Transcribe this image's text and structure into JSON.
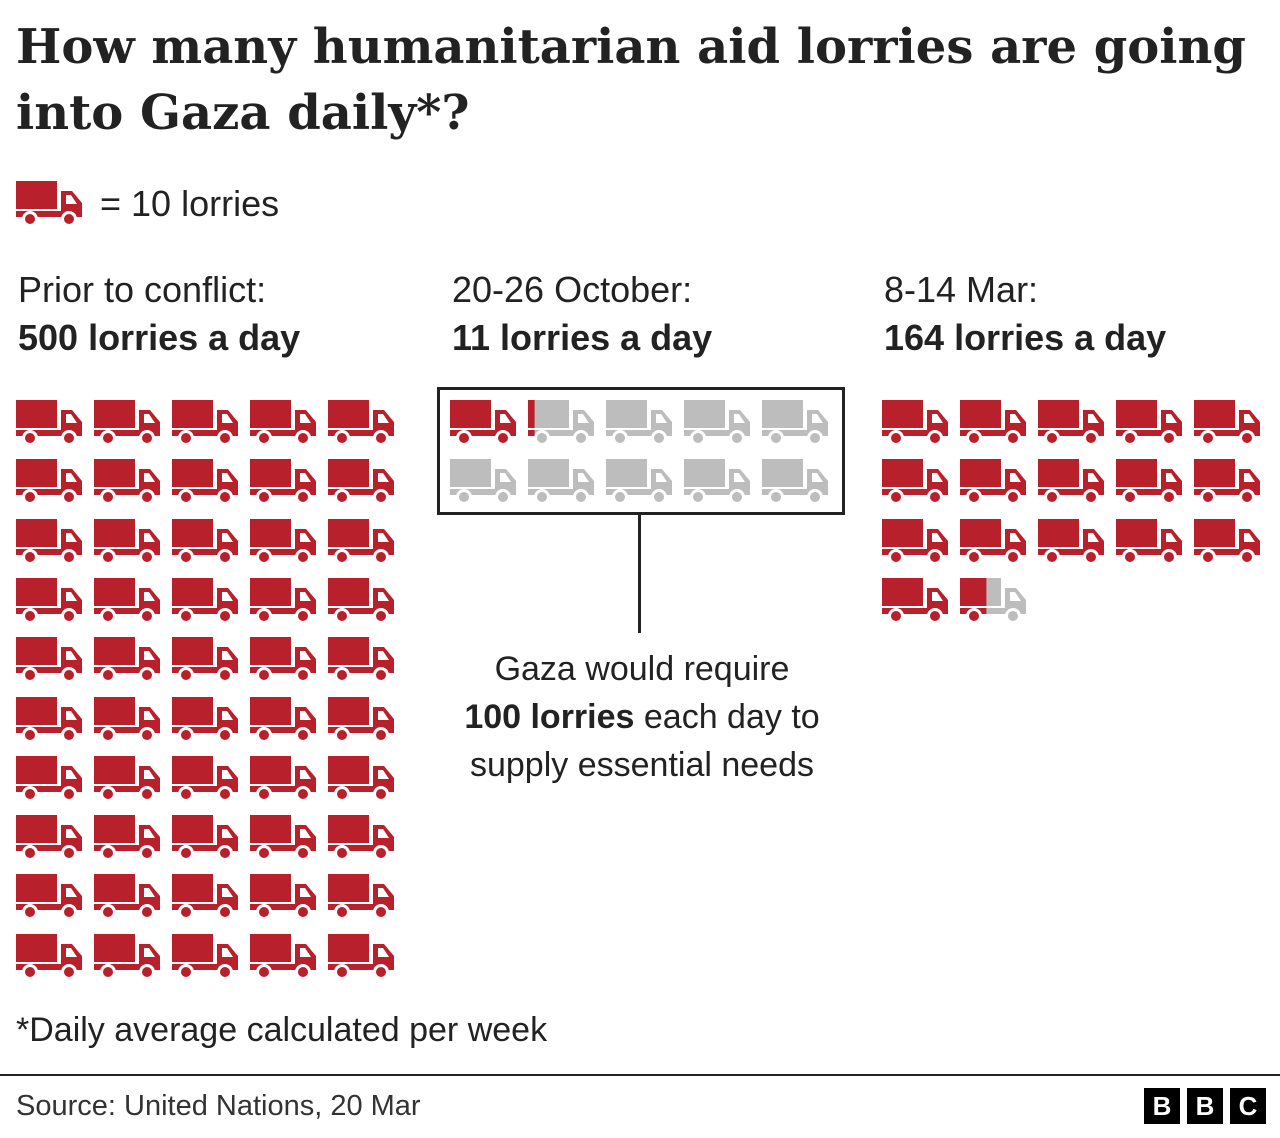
{
  "title": "How many humanitarian aid lorries are going into Gaza daily*?",
  "key": {
    "icon": "lorry-icon",
    "text": "= 10 lorries",
    "unit": 10
  },
  "colors": {
    "filled": "#b8202b",
    "empty": "#bdbdbd",
    "text": "#222222"
  },
  "note": {
    "line1": "Gaza would require",
    "bold": "100 lorries",
    "line2": " each day to",
    "line3": "supply essential needs"
  },
  "footnote": "*Daily average calculated per week",
  "source": "Source: United Nations, 20 Mar",
  "logo": [
    "B",
    "B",
    "C"
  ],
  "chart_data": {
    "type": "pictogram",
    "title": "How many humanitarian aid lorries are going into Gaza daily*?",
    "unit_per_icon": 10,
    "categories": [
      "Prior to conflict:",
      "20-26 October:",
      "8-14 Mar:"
    ],
    "series": [
      {
        "label": "Prior to conflict:",
        "value_label": "500 lorries a day",
        "value": 500
      },
      {
        "label": "20-26 October:",
        "value_label": "11 lorries a day",
        "value": 11,
        "reference": 100
      },
      {
        "label": "8-14 Mar:",
        "value_label": "164 lorries a day",
        "value": 164
      }
    ]
  }
}
